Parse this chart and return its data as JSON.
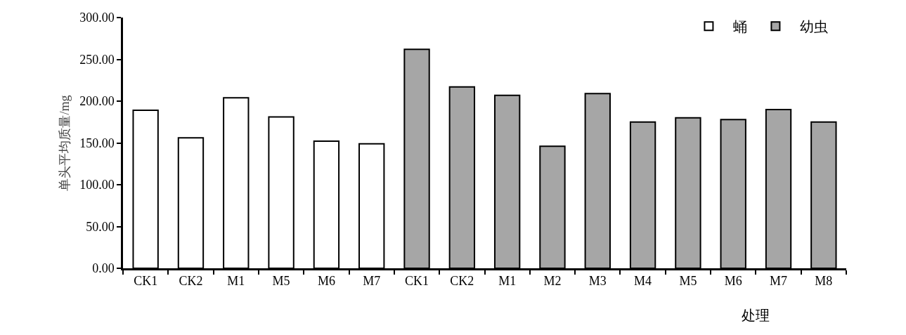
{
  "chart_data": {
    "type": "bar",
    "ylabel": "单头平均质量/mg",
    "xlabel": "处理",
    "categories": [
      "CK1",
      "CK2",
      "M1",
      "M5",
      "M6",
      "M7",
      "CK1",
      "CK2",
      "M1",
      "M2",
      "M3",
      "M4",
      "M5",
      "M6",
      "M7",
      "M8"
    ],
    "series": [
      {
        "name": "蛹",
        "color": "#ffffff",
        "values": [
          189,
          156,
          204,
          181,
          152,
          149,
          null,
          null,
          null,
          null,
          null,
          null,
          null,
          null,
          null,
          null
        ]
      },
      {
        "name": "幼虫",
        "color": "#a6a6a6",
        "values": [
          null,
          null,
          null,
          null,
          null,
          null,
          262,
          217,
          207,
          146,
          209,
          175,
          180,
          178,
          190,
          175
        ]
      }
    ],
    "ylim": [
      0,
      300
    ],
    "yticks": [
      {
        "value": 0,
        "label": "0.00"
      },
      {
        "value": 50,
        "label": "50.00"
      },
      {
        "value": 100,
        "label": "100.00"
      },
      {
        "value": 150,
        "label": "150.00"
      },
      {
        "value": 200,
        "label": "200.00"
      },
      {
        "value": 250,
        "label": "250.00"
      },
      {
        "value": 300,
        "label": "300.00"
      }
    ],
    "legend": "top right"
  }
}
